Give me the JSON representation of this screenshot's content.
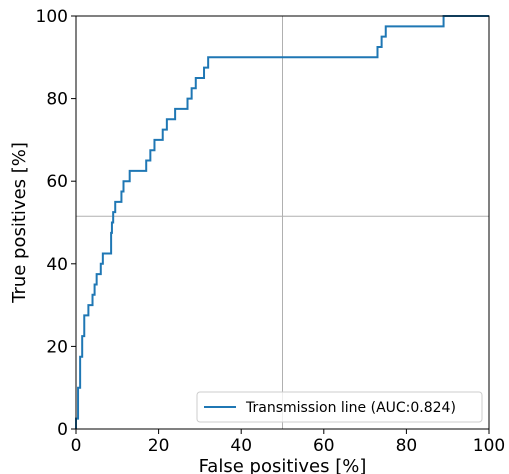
{
  "chart_data": {
    "type": "line",
    "title": "",
    "xlabel": "False positives [%]",
    "ylabel": "True positives [%]",
    "xlim": [
      0,
      100
    ],
    "ylim": [
      0,
      100
    ],
    "xticks": [
      0,
      20,
      40,
      60,
      80,
      100
    ],
    "yticks": [
      0,
      20,
      40,
      60,
      80,
      100
    ],
    "grid": true,
    "grid_lines_x": [
      50
    ],
    "grid_lines_y": [
      51.5
    ],
    "legend_position": "lower-right",
    "series": [
      {
        "name": "Transmission line (AUC:0.824)",
        "color": "#1f77b4",
        "x": [
          0,
          0,
          0.5,
          0.5,
          1,
          1,
          1.5,
          1.5,
          2,
          2,
          3,
          3,
          4,
          4,
          4.5,
          4.5,
          5,
          5,
          6,
          6,
          6.5,
          6.5,
          8.5,
          8.5,
          8.7,
          8.7,
          9,
          9,
          9.5,
          9.5,
          11,
          11,
          11.5,
          11.5,
          13,
          13,
          17,
          17,
          18,
          18,
          19,
          19,
          21,
          21,
          22,
          22,
          24,
          24,
          27,
          27,
          28,
          28,
          29,
          29,
          31,
          31,
          32,
          32,
          73,
          73,
          74,
          74,
          75,
          75,
          89,
          89,
          100
        ],
        "y": [
          0,
          2.5,
          2.5,
          10,
          10,
          17.5,
          17.5,
          22.5,
          22.5,
          27.5,
          27.5,
          30,
          30,
          32.5,
          32.5,
          35,
          35,
          37.5,
          37.5,
          40,
          40,
          42.5,
          42.5,
          47.5,
          47.5,
          50,
          50,
          52.5,
          52.5,
          55,
          55,
          57.5,
          57.5,
          60,
          60,
          62.5,
          62.5,
          65,
          65,
          67.5,
          67.5,
          70,
          70,
          72.5,
          72.5,
          75,
          75,
          77.5,
          77.5,
          80,
          80,
          82.5,
          82.5,
          85,
          85,
          87.5,
          87.5,
          90,
          90,
          92.5,
          92.5,
          95,
          95,
          97.5,
          97.5,
          100,
          100
        ]
      }
    ]
  }
}
